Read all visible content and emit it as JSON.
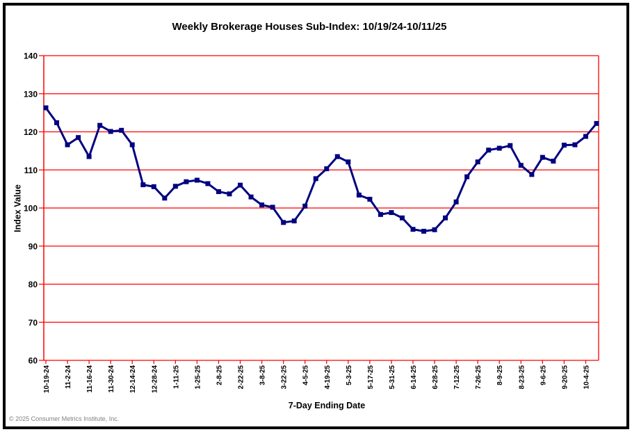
{
  "page": {
    "footer": "© 2025 Consumer Metrics Institute, Inc."
  },
  "chart_data": {
    "type": "line",
    "title": "Weekly Brokerage Houses Sub-Index: 10/19/24-10/11/25",
    "xlabel": "7-Day Ending Date",
    "ylabel": "Index Value",
    "ylim": [
      60,
      140
    ],
    "ytick_step": 10,
    "ytick_labels": [
      "60",
      "70",
      "80",
      "90",
      "100",
      "110",
      "120",
      "130",
      "140"
    ],
    "grid": "horizontal-red-gridlines",
    "legend": "none",
    "marker": "square",
    "x_tick_every": 2,
    "colors": {
      "series": "#000080",
      "grid": "#FF0000",
      "axis": "#FF0000",
      "title_text": "#000000",
      "footer_text": "#808080",
      "background": "#FFFFFF"
    },
    "x": [
      "10-19-24",
      "10-26-24",
      "11-2-24",
      "11-9-24",
      "11-16-24",
      "11-23-24",
      "11-30-24",
      "12-7-24",
      "12-14-24",
      "12-21-24",
      "12-28-24",
      "1-4-25",
      "1-11-25",
      "1-18-25",
      "1-25-25",
      "2-1-25",
      "2-8-25",
      "2-15-25",
      "2-22-25",
      "3-1-25",
      "3-8-25",
      "3-15-25",
      "3-22-25",
      "3-29-25",
      "4-5-25",
      "4-12-25",
      "4-19-25",
      "4-26-25",
      "5-3-25",
      "5-10-25",
      "5-17-25",
      "5-24-25",
      "5-31-25",
      "6-7-25",
      "6-14-25",
      "6-21-25",
      "6-28-25",
      "7-5-25",
      "7-12-25",
      "7-19-25",
      "7-26-25",
      "8-2-25",
      "8-9-25",
      "8-16-25",
      "8-23-25",
      "8-30-25",
      "9-6-25",
      "9-13-25",
      "9-20-25",
      "9-27-25",
      "10-4-25",
      "10-11-25"
    ],
    "series": [
      {
        "name": "Brokerage Houses Sub-Index",
        "values": [
          126.3,
          122.4,
          116.6,
          118.5,
          113.5,
          121.7,
          120.1,
          120.4,
          116.6,
          106.1,
          105.6,
          102.6,
          105.7,
          106.9,
          107.3,
          106.4,
          104.3,
          103.7,
          106.0,
          102.9,
          100.8,
          100.2,
          96.2,
          96.6,
          100.5,
          107.7,
          110.3,
          113.5,
          112.1,
          103.4,
          102.3,
          98.3,
          98.8,
          97.4,
          94.4,
          93.9,
          94.3,
          97.4,
          101.6,
          108.2,
          112.1,
          115.2,
          115.7,
          116.4,
          111.2,
          108.8,
          113.3,
          112.3,
          116.5,
          116.6,
          118.8,
          122.2
        ]
      }
    ]
  }
}
